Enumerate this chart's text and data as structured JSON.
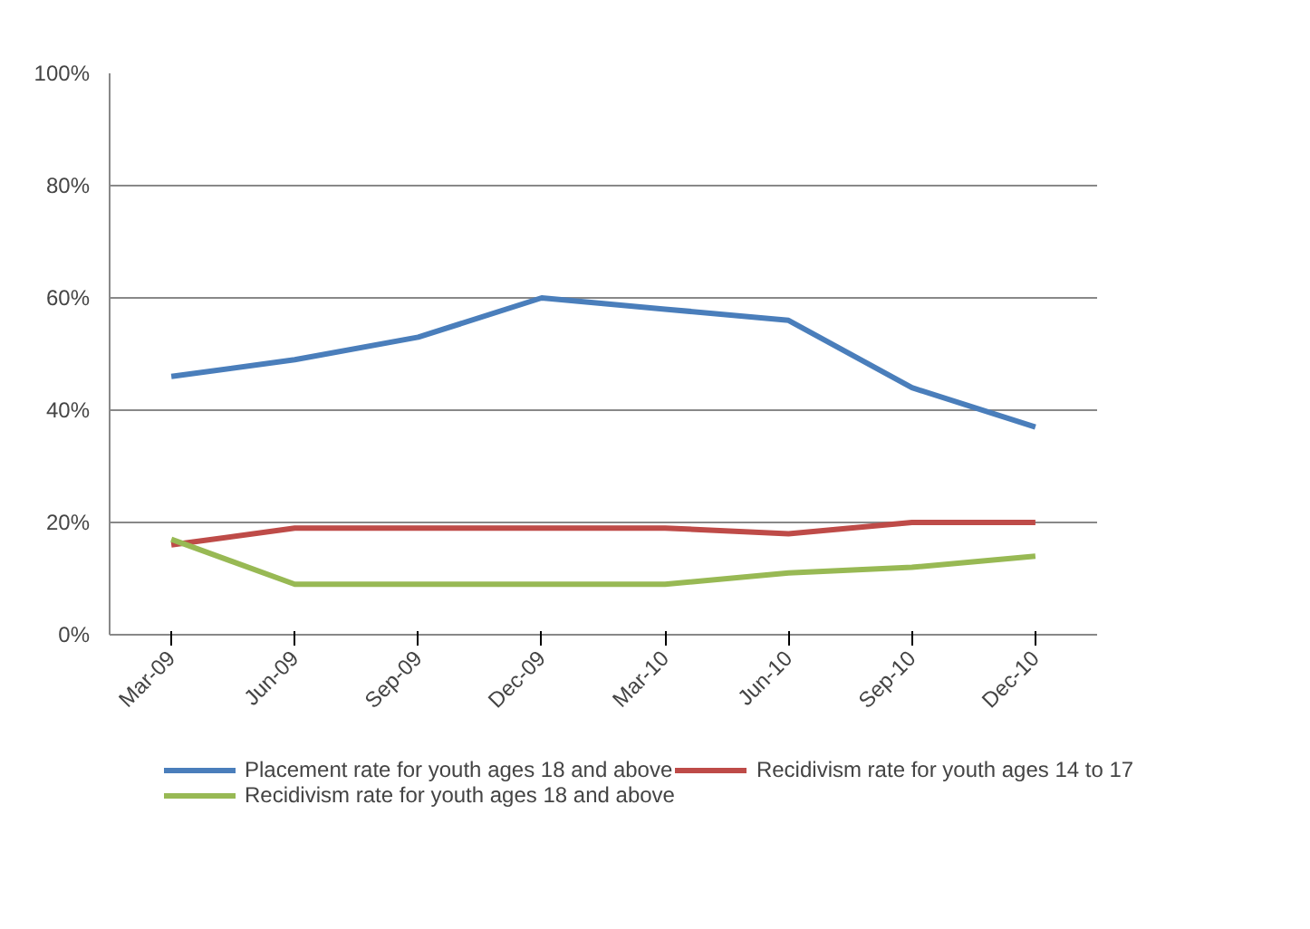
{
  "chart_data": {
    "type": "line",
    "categories": [
      "Mar-09",
      "Jun-09",
      "Sep-09",
      "Dec-09",
      "Mar-10",
      "Jun-10",
      "Sep-10",
      "Dec-10"
    ],
    "series": [
      {
        "name": "Placement rate for youth ages 18 and above",
        "color": "#4a7ebb",
        "values": [
          46,
          49,
          53,
          60,
          58,
          56,
          44,
          37
        ]
      },
      {
        "name": "Recidivism rate for youth ages 14 to 17",
        "color": "#be4b48",
        "values": [
          16,
          19,
          19,
          19,
          19,
          18,
          20,
          20
        ]
      },
      {
        "name": "Recidivism rate for youth ages 18 and above",
        "color": "#98b954",
        "values": [
          17,
          9,
          9,
          9,
          9,
          11,
          12,
          14
        ]
      }
    ],
    "ylim": [
      0,
      100
    ],
    "yticks": [
      {
        "value": 0,
        "label": "0%"
      },
      {
        "value": 20,
        "label": "20%"
      },
      {
        "value": 40,
        "label": "40%"
      },
      {
        "value": 60,
        "label": "60%"
      },
      {
        "value": 80,
        "label": "80%"
      },
      {
        "value": 100,
        "label": "100%"
      }
    ],
    "grid": "y",
    "legend": "bottom",
    "marker": "none",
    "line_style": "solid"
  }
}
